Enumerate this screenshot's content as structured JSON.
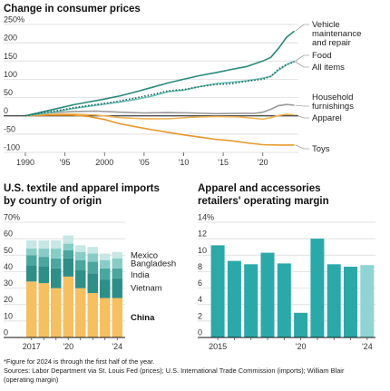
{
  "footnote": "*Figure for 2024 is through the first half of the year.",
  "sources_line1": "Sources: Labor Department via St. Louis Fed (prices); U.S. International Trade Commission (imports); William Blair",
  "sources_line2": "(operating margin)",
  "colors": {
    "vehicle": "#2a8a7a",
    "food": "#6fc2bb",
    "all_items": "#1d6b60",
    "household": "#9a9a9a",
    "apparel": "#f0b558",
    "toys": "#e8982a",
    "china": "#f6bf60",
    "vietnam": "#2d8f88",
    "india": "#4aa7a0",
    "bangladesh": "#88ccc7",
    "mexico": "#c6e7e4",
    "margin": "#2ba8a8",
    "margin_2024": "#8fd3d3"
  },
  "chart_data": [
    {
      "type": "line",
      "title": "Change in consumer prices",
      "ylim": [
        -100,
        250
      ],
      "y_ticks": [
        "250%",
        "200",
        "150",
        "100",
        "50",
        "0",
        "-50",
        "-100"
      ],
      "y_tick_values": [
        250,
        200,
        150,
        100,
        50,
        0,
        -50,
        -100
      ],
      "xlim": [
        1990,
        2024.5
      ],
      "x_ticks": [
        "1990",
        "'95",
        "2000",
        "'05",
        "'10",
        "'15",
        "'20"
      ],
      "x_tick_values": [
        1990,
        1995,
        2000,
        2005,
        2010,
        2015,
        2020
      ],
      "series": [
        {
          "name": "Vehicle maintenance and repair",
          "label_lines": [
            "Vehicle",
            "maintenance",
            "and repair"
          ],
          "color_key": "vehicle",
          "style": "solid",
          "x": [
            1990,
            1992,
            1994,
            1996,
            1998,
            2000,
            2002,
            2004,
            2006,
            2008,
            2010,
            2012,
            2014,
            2016,
            2018,
            2020,
            2021,
            2022,
            2023,
            2024
          ],
          "y": [
            0,
            10,
            20,
            30,
            38,
            46,
            55,
            66,
            78,
            90,
            100,
            110,
            118,
            127,
            135,
            150,
            160,
            185,
            215,
            232
          ]
        },
        {
          "name": "Food",
          "label_lines": [
            "Food"
          ],
          "color_key": "food",
          "style": "solid",
          "x": [
            1990,
            1992,
            1994,
            1996,
            1998,
            2000,
            2002,
            2004,
            2006,
            2008,
            2010,
            2012,
            2014,
            2016,
            2018,
            2020,
            2021,
            2022,
            2023,
            2024
          ],
          "y": [
            0,
            6,
            12,
            20,
            26,
            32,
            38,
            45,
            54,
            66,
            70,
            80,
            88,
            92,
            96,
            103,
            108,
            125,
            140,
            150
          ]
        },
        {
          "name": "All items",
          "label_lines": [
            "All items"
          ],
          "color_key": "all_items",
          "style": "dotted",
          "x": [
            1990,
            1992,
            1994,
            1996,
            1998,
            2000,
            2002,
            2004,
            2006,
            2008,
            2010,
            2012,
            2014,
            2016,
            2018,
            2020,
            2021,
            2022,
            2023,
            2024
          ],
          "y": [
            0,
            8,
            14,
            22,
            28,
            34,
            41,
            49,
            58,
            68,
            72,
            80,
            86,
            88,
            95,
            100,
            108,
            128,
            140,
            148
          ]
        },
        {
          "name": "Household furnishings",
          "label_lines": [
            "Household",
            "furnishings"
          ],
          "color_key": "household",
          "style": "solid",
          "x": [
            1990,
            1993,
            1996,
            1999,
            2002,
            2005,
            2008,
            2011,
            2014,
            2017,
            2019,
            2020,
            2021,
            2022,
            2023,
            2024
          ],
          "y": [
            0,
            8,
            12,
            13,
            10,
            8,
            9,
            8,
            6,
            7,
            7,
            10,
            18,
            28,
            31,
            29
          ]
        },
        {
          "name": "Apparel",
          "label_lines": [
            "Apparel"
          ],
          "color_key": "apparel",
          "style": "solid",
          "x": [
            1990,
            1993,
            1996,
            1999,
            2002,
            2005,
            2008,
            2011,
            2014,
            2017,
            2020,
            2021,
            2022,
            2023,
            2024
          ],
          "y": [
            0,
            4,
            5,
            2,
            -5,
            -8,
            -8,
            -4,
            -2,
            -3,
            -9,
            -5,
            1,
            4,
            3
          ]
        },
        {
          "name": "Toys",
          "label_lines": [
            "Toys"
          ],
          "color_key": "toys",
          "style": "solid",
          "x": [
            1990,
            1993,
            1996,
            1998,
            2000,
            2002,
            2004,
            2006,
            2008,
            2010,
            2012,
            2014,
            2016,
            2018,
            2020,
            2022,
            2024
          ],
          "y": [
            0,
            2,
            2,
            -2,
            -10,
            -22,
            -30,
            -38,
            -45,
            -52,
            -58,
            -64,
            -68,
            -74,
            -79,
            -80,
            -80
          ]
        }
      ]
    },
    {
      "type": "bar",
      "stacked": true,
      "title_lines": [
        "U.S. textile and apparel imports",
        "by country of origin"
      ],
      "ylim": [
        0,
        70
      ],
      "y_ticks": [
        "70%",
        "60",
        "50",
        "40",
        "30",
        "20",
        "10",
        "0"
      ],
      "y_tick_values": [
        70,
        60,
        50,
        40,
        30,
        20,
        10,
        0
      ],
      "categories": [
        "2017",
        "2018",
        "2019",
        "2020",
        "2021",
        "2022",
        "2023",
        "2024*"
      ],
      "x_labels": [
        "2017",
        "",
        "",
        "'20",
        "",
        "",
        "",
        "'24"
      ],
      "series": [
        {
          "name": "China",
          "color_key": "china",
          "values": [
            34,
            33,
            30,
            37,
            30,
            27,
            24,
            24
          ]
        },
        {
          "name": "Vietnam",
          "color_key": "vietnam",
          "values": [
            10,
            10,
            12,
            11,
            11,
            12,
            11,
            12
          ]
        },
        {
          "name": "India",
          "color_key": "india",
          "values": [
            6,
            6,
            6,
            5,
            6,
            7,
            7,
            6
          ]
        },
        {
          "name": "Bangladesh",
          "color_key": "bangladesh",
          "values": [
            4,
            5,
            6,
            4,
            5,
            5,
            5,
            6
          ]
        },
        {
          "name": "Mexico",
          "color_key": "mexico",
          "values": [
            5,
            5,
            5,
            5,
            4,
            4,
            4,
            4
          ]
        }
      ]
    },
    {
      "type": "bar",
      "title_lines": [
        "Apparel and accessories",
        "retailers' operating margin"
      ],
      "ylim": [
        0,
        14
      ],
      "y_ticks": [
        "14%",
        "12",
        "10",
        "8",
        "6",
        "4",
        "2",
        "0"
      ],
      "y_tick_values": [
        14,
        12,
        10,
        8,
        6,
        4,
        2,
        0
      ],
      "categories": [
        "2015",
        "2016",
        "2017",
        "2018",
        "2019",
        "2020",
        "2021",
        "2022",
        "2023",
        "2024*"
      ],
      "x_labels": [
        "2015",
        "",
        "",
        "",
        "",
        "'20",
        "",
        "",
        "",
        "'24"
      ],
      "values": [
        11.2,
        9.3,
        8.9,
        10.3,
        9.0,
        3.0,
        12.0,
        8.9,
        8.6,
        8.8
      ]
    }
  ]
}
